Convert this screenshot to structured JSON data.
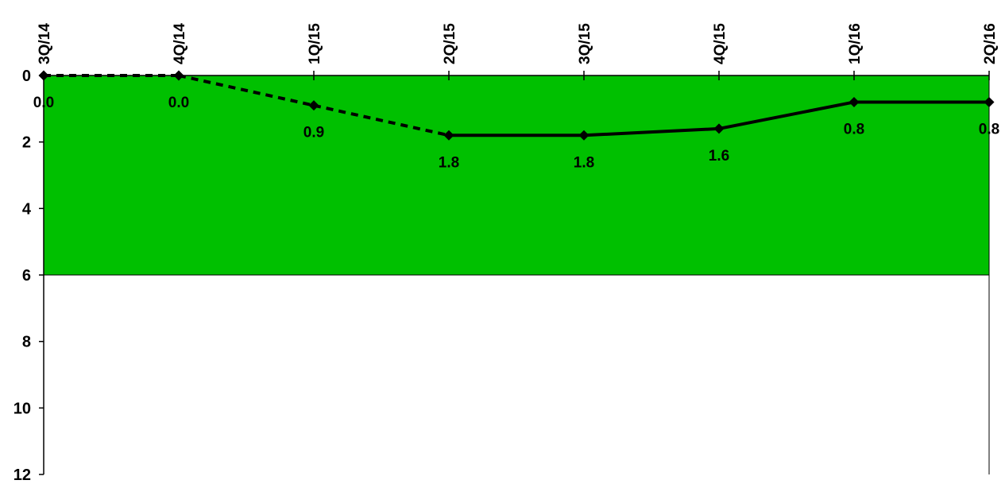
{
  "chart_data": {
    "type": "line",
    "categories": [
      "3Q/14",
      "4Q/14",
      "1Q/15",
      "2Q/15",
      "3Q/15",
      "4Q/15",
      "1Q/16",
      "2Q/16"
    ],
    "y_axis": {
      "ylim": [
        0,
        12
      ],
      "inverted": true,
      "ticks": [
        0,
        2,
        4,
        6,
        8,
        10,
        12
      ]
    },
    "x_axis_position": "top",
    "band": {
      "from": 0,
      "to": 6,
      "color": "#00c000"
    },
    "series": [
      {
        "values": [
          0.0,
          0.0,
          0.9,
          1.8,
          1.8,
          1.6,
          0.8,
          0.8
        ],
        "data_labels": [
          "0.0",
          "0.0",
          "0.9",
          "1.8",
          "1.8",
          "1.6",
          "0.8",
          "0.8"
        ],
        "color": "#000000",
        "dashed_until_index": 3,
        "marker": "diamond"
      }
    ],
    "grid": false,
    "legend": "none"
  }
}
